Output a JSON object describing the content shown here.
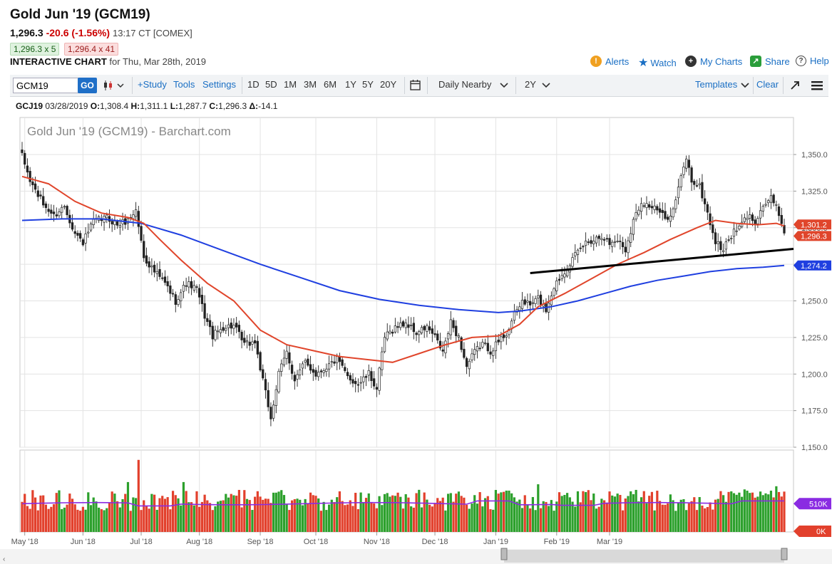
{
  "header": {
    "title": "Gold Jun '19 (GCM19)",
    "last": "1,296.3",
    "change": "-20.6 (-1.56%)",
    "time": "13:17 CT [COMEX]",
    "bid": "1,296.3 x 5",
    "ask": "1,296.4 x 41",
    "interactive_label": "INTERACTIVE CHART",
    "for_date": "for Thu, Mar 28th, 2019"
  },
  "toplinks": {
    "alerts": "Alerts",
    "watch": "Watch",
    "my_charts": "My Charts",
    "share": "Share",
    "help": "Help"
  },
  "toolbar": {
    "symbol": "GCM19",
    "go": "GO",
    "study": "+Study",
    "tools": "Tools",
    "settings": "Settings",
    "periods": [
      "1D",
      "5D",
      "1M",
      "3M",
      "6M",
      "1Y",
      "5Y",
      "20Y"
    ],
    "aggregation": "Daily Nearby",
    "range": "2Y",
    "templates": "Templates",
    "clear": "Clear"
  },
  "ohlc": {
    "symbol": "GCJ19",
    "date": "03/28/2019",
    "o_label": "O:",
    "o": "1,308.4",
    "h_label": "H:",
    "h": "1,311.1",
    "l_label": "L:",
    "l": "1,287.7",
    "c_label": "C:",
    "c": "1,296.3",
    "d_label": "Δ:",
    "d": "-14.1"
  },
  "colors": {
    "up": "#2ca02c",
    "down": "#e2402c",
    "ma_short": "#e0452b",
    "ma_long": "#1f3fe0",
    "volume_ma": "#8a2be2",
    "accent": "#1f6fc7"
  },
  "chart_data": {
    "type": "candlestick",
    "title": "Gold Jun '19 (GCM19) - Barchart.com",
    "y_ticks": [
      "1,350.0",
      "1,325.0",
      "1,300.0",
      "1,275.0",
      "1,250.0",
      "1,225.0",
      "1,200.0",
      "1,175.0",
      "1,150.0"
    ],
    "ylim": [
      1150,
      1360
    ],
    "x_months": [
      "May '18",
      "Jun '18",
      "Jul '18",
      "Aug '18",
      "Sep '18",
      "Oct '18",
      "Nov '18",
      "Dec '18",
      "Jan '19",
      "Feb '19",
      "Mar '19"
    ],
    "price_labels": {
      "ma_short": "1,301.2",
      "last": "1,296.3",
      "ma_long": "1,274.2"
    },
    "volume": {
      "ma_label": "510K",
      "zero_label": "0K",
      "ma_level": 510
    },
    "trendline": {
      "from": [
        "Dec '18",
        1269
      ],
      "to": [
        "Mar 28 '19",
        1286
      ]
    },
    "seed_closes": [
      [
        0,
        1349
      ],
      [
        3,
        1332
      ],
      [
        8,
        1316
      ],
      [
        12,
        1308
      ],
      [
        16,
        1315
      ],
      [
        20,
        1296
      ],
      [
        23,
        1290
      ],
      [
        27,
        1304
      ],
      [
        32,
        1307
      ],
      [
        36,
        1302
      ],
      [
        40,
        1305
      ],
      [
        43,
        1312
      ],
      [
        46,
        1280
      ],
      [
        50,
        1270
      ],
      [
        54,
        1262
      ],
      [
        58,
        1250
      ],
      [
        62,
        1262
      ],
      [
        66,
        1258
      ],
      [
        69,
        1240
      ],
      [
        72,
        1226
      ],
      [
        76,
        1232
      ],
      [
        80,
        1233
      ],
      [
        84,
        1220
      ],
      [
        88,
        1222
      ],
      [
        91,
        1195
      ],
      [
        94,
        1170
      ],
      [
        97,
        1200
      ],
      [
        100,
        1215
      ],
      [
        103,
        1196
      ],
      [
        107,
        1208
      ],
      [
        111,
        1200
      ],
      [
        115,
        1205
      ],
      [
        119,
        1210
      ],
      [
        123,
        1198
      ],
      [
        127,
        1193
      ],
      [
        131,
        1200
      ],
      [
        134,
        1190
      ],
      [
        137,
        1225
      ],
      [
        141,
        1232
      ],
      [
        145,
        1235
      ],
      [
        149,
        1228
      ],
      [
        153,
        1232
      ],
      [
        156,
        1225
      ],
      [
        159,
        1215
      ],
      [
        162,
        1235
      ],
      [
        165,
        1225
      ],
      [
        168,
        1205
      ],
      [
        171,
        1215
      ],
      [
        174,
        1221
      ],
      [
        177,
        1216
      ],
      [
        180,
        1222
      ],
      [
        183,
        1228
      ],
      [
        186,
        1240
      ],
      [
        189,
        1250
      ],
      [
        192,
        1247
      ],
      [
        195,
        1252
      ],
      [
        198,
        1244
      ],
      [
        201,
        1260
      ],
      [
        204,
        1268
      ],
      [
        207,
        1276
      ],
      [
        210,
        1283
      ],
      [
        213,
        1290
      ],
      [
        216,
        1292
      ],
      [
        219,
        1295
      ],
      [
        222,
        1289
      ],
      [
        225,
        1292
      ],
      [
        228,
        1285
      ],
      [
        231,
        1305
      ],
      [
        234,
        1318
      ],
      [
        237,
        1315
      ],
      [
        240,
        1312
      ],
      [
        243,
        1306
      ],
      [
        246,
        1312
      ],
      [
        249,
        1334
      ],
      [
        251,
        1348
      ],
      [
        253,
        1332
      ],
      [
        256,
        1328
      ],
      [
        259,
        1310
      ],
      [
        262,
        1290
      ],
      [
        265,
        1285
      ],
      [
        268,
        1295
      ],
      [
        271,
        1300
      ],
      [
        274,
        1308
      ],
      [
        277,
        1305
      ],
      [
        280,
        1315
      ],
      [
        283,
        1320
      ],
      [
        286,
        1310
      ],
      [
        288,
        1296
      ]
    ],
    "ma_short_series": [
      [
        0,
        1335
      ],
      [
        10,
        1330
      ],
      [
        20,
        1318
      ],
      [
        30,
        1310
      ],
      [
        40,
        1307
      ],
      [
        46,
        1303
      ],
      [
        52,
        1292
      ],
      [
        60,
        1278
      ],
      [
        70,
        1262
      ],
      [
        80,
        1250
      ],
      [
        90,
        1230
      ],
      [
        100,
        1220
      ],
      [
        110,
        1216
      ],
      [
        120,
        1212
      ],
      [
        130,
        1210
      ],
      [
        140,
        1208
      ],
      [
        150,
        1214
      ],
      [
        160,
        1220
      ],
      [
        170,
        1225
      ],
      [
        180,
        1226
      ],
      [
        188,
        1234
      ],
      [
        195,
        1246
      ],
      [
        205,
        1255
      ],
      [
        215,
        1265
      ],
      [
        225,
        1275
      ],
      [
        235,
        1283
      ],
      [
        245,
        1292
      ],
      [
        255,
        1300
      ],
      [
        262,
        1305
      ],
      [
        270,
        1303
      ],
      [
        278,
        1302
      ],
      [
        285,
        1303
      ],
      [
        288,
        1301.2
      ]
    ],
    "ma_long_series": [
      [
        0,
        1305
      ],
      [
        15,
        1306
      ],
      [
        30,
        1306
      ],
      [
        45,
        1303
      ],
      [
        60,
        1295
      ],
      [
        75,
        1285
      ],
      [
        90,
        1275
      ],
      [
        105,
        1266
      ],
      [
        120,
        1257
      ],
      [
        135,
        1251
      ],
      [
        150,
        1247
      ],
      [
        165,
        1244
      ],
      [
        180,
        1242
      ],
      [
        188,
        1243
      ],
      [
        200,
        1246
      ],
      [
        210,
        1250
      ],
      [
        220,
        1255
      ],
      [
        230,
        1260
      ],
      [
        240,
        1264
      ],
      [
        250,
        1267
      ],
      [
        260,
        1270
      ],
      [
        270,
        1272
      ],
      [
        280,
        1273
      ],
      [
        288,
        1274.2
      ]
    ]
  }
}
